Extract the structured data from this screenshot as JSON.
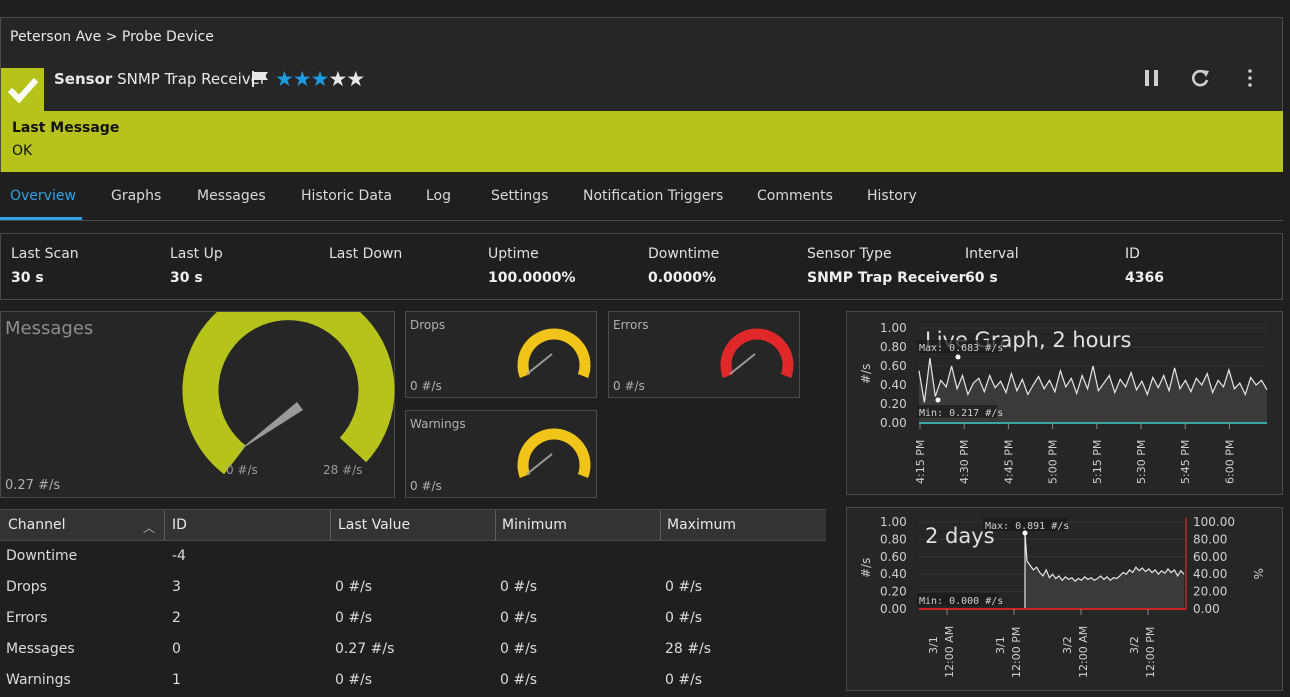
{
  "breadcrumb": "Peterson Ave > Probe Device",
  "sensor": {
    "prefix": "Sensor",
    "name": "SNMP Trap Receiver",
    "priority_stars": 3,
    "max_stars": 5
  },
  "icons": {
    "status": "check-icon",
    "flag": "flag-icon",
    "pause": "pause-icon",
    "refresh": "refresh-icon",
    "more": "more-vertical-icon"
  },
  "colors": {
    "status_ok": "#b5c31a",
    "accent": "#2ea3e6",
    "warning": "#f0c419",
    "error": "#e0282b"
  },
  "message": {
    "title": "Last Message",
    "value": "OK"
  },
  "tabs": [
    "Overview",
    "Graphs",
    "Messages",
    "Historic Data",
    "Log",
    "Settings",
    "Notification Triggers",
    "Comments",
    "History"
  ],
  "active_tab": "Overview",
  "stats": [
    {
      "label": "Last Scan",
      "value": "30 s"
    },
    {
      "label": "Last Up",
      "value": "30 s"
    },
    {
      "label": "Last Down",
      "value": ""
    },
    {
      "label": "Uptime",
      "value": "100.0000%"
    },
    {
      "label": "Downtime",
      "value": "0.0000%"
    },
    {
      "label": "Sensor Type",
      "value": "SNMP Trap Receiver"
    },
    {
      "label": "Interval",
      "value": "60 s"
    },
    {
      "label": "ID",
      "value": "4366"
    }
  ],
  "gauges": {
    "messages": {
      "title": "Messages",
      "value": "0.27 #/s",
      "min_label": "0 #/s",
      "max_label": "28 #/s",
      "level": 0.01
    },
    "drops": {
      "title": "Drops",
      "value": "0 #/s",
      "level": 0
    },
    "errors": {
      "title": "Errors",
      "value": "0 #/s",
      "level": 0
    },
    "warnings": {
      "title": "Warnings",
      "value": "0 #/s",
      "level": 0
    }
  },
  "live_graph": {
    "title": "Live Graph, 2 hours",
    "ylabel": "#/s",
    "yticks": [
      "1.00",
      "0.80",
      "0.60",
      "0.40",
      "0.20",
      "0.00"
    ],
    "xticks": [
      "4:15 PM",
      "4:30 PM",
      "4:45 PM",
      "5:00 PM",
      "5:15 PM",
      "5:30 PM",
      "5:45 PM",
      "6:00 PM"
    ],
    "max_label": "Max: 0.683 #/s",
    "min_label": "Min: 0.217 #/s"
  },
  "days_graph": {
    "title": "2 days",
    "ylabel": "#/s",
    "ylabel_right": "%",
    "yticks": [
      "1.00",
      "0.80",
      "0.60",
      "0.40",
      "0.20",
      "0.00"
    ],
    "yticks_right": [
      "100.00",
      "80.00",
      "60.00",
      "40.00",
      "20.00",
      "0.00"
    ],
    "xticks": [
      [
        "3/1",
        "12:00 AM"
      ],
      [
        "3/1",
        "12:00 PM"
      ],
      [
        "3/2",
        "12:00 AM"
      ],
      [
        "3/2",
        "12:00 PM"
      ]
    ],
    "max_label": "Max: 0.891 #/s",
    "min_label": "Min: 0.000 #/s"
  },
  "table": {
    "headers": [
      "Channel",
      "ID",
      "Last Value",
      "Minimum",
      "Maximum"
    ],
    "rows": [
      [
        "Downtime",
        "-4",
        "",
        "",
        ""
      ],
      [
        "Drops",
        "3",
        "0 #/s",
        "0 #/s",
        "0 #/s"
      ],
      [
        "Errors",
        "2",
        "0 #/s",
        "0 #/s",
        "0 #/s"
      ],
      [
        "Messages",
        "0",
        "0.27 #/s",
        "0 #/s",
        "28 #/s"
      ],
      [
        "Warnings",
        "1",
        "0 #/s",
        "0 #/s",
        "0 #/s"
      ]
    ]
  }
}
